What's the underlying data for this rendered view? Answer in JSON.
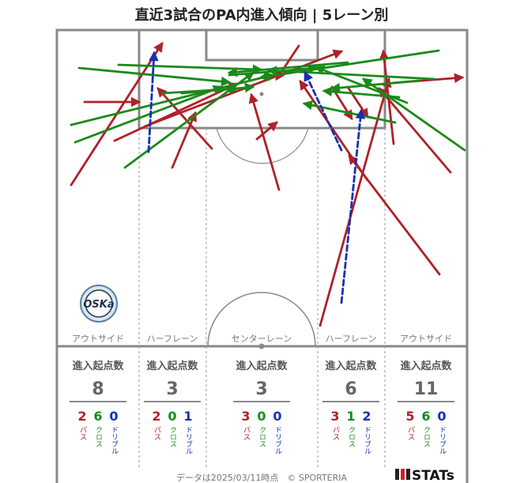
{
  "title": "直近3試合のPA内進入傾向 | 5レーン別",
  "footer": "データは2025/03/11時点　© SPORTERIA",
  "brand": {
    "name": "STATs",
    "logo_text": "FC OSAKA"
  },
  "colors": {
    "pass": "#b02028",
    "cross": "#1a8a1a",
    "dribble": "#1630b0",
    "line": "#888888"
  },
  "stat_header": "進入起点数",
  "type_labels": {
    "pass": "パス",
    "cross": "クロス",
    "dribble": "ドリブル"
  },
  "lanes": [
    {
      "name": "アウトサイド",
      "total": "8",
      "pass": "2",
      "cross": "6",
      "dribble": "0"
    },
    {
      "name": "ハーフレーン",
      "total": "3",
      "pass": "2",
      "cross": "0",
      "dribble": "1"
    },
    {
      "name": "センターレーン",
      "total": "3",
      "pass": "3",
      "cross": "0",
      "dribble": "0"
    },
    {
      "name": "ハーフレーン",
      "total": "6",
      "pass": "3",
      "cross": "1",
      "dribble": "2"
    },
    {
      "name": "アウトサイド",
      "total": "11",
      "pass": "5",
      "cross": "6",
      "dribble": "0"
    }
  ]
}
